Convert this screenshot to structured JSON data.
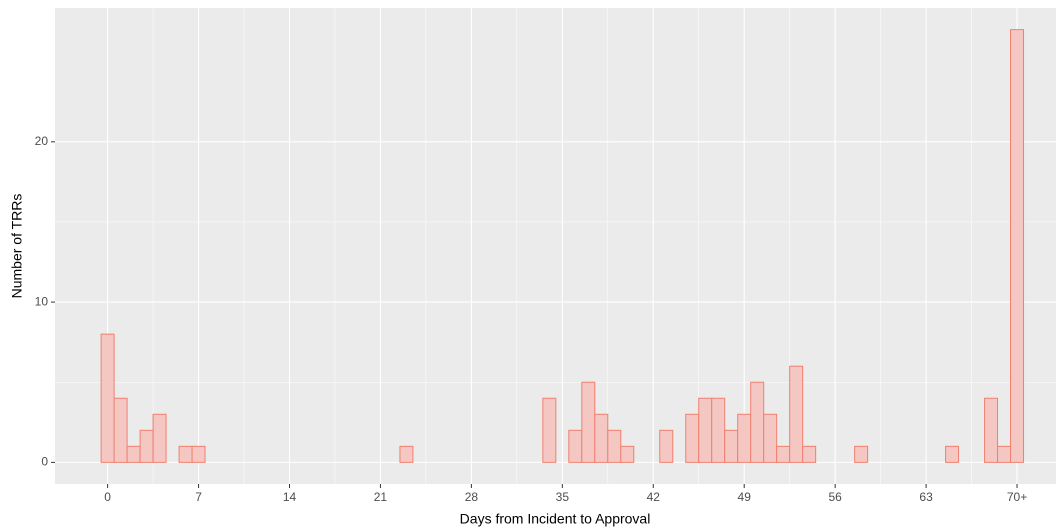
{
  "chart_data": {
    "type": "histogram",
    "x_label": "Days from Incident to Approval",
    "y_label": "Number of TRRs",
    "bins": [
      -0.5,
      0.5,
      1.5,
      2.5,
      3.5,
      4.5,
      5.5,
      6.5,
      7.5,
      8.5,
      9.5,
      10.5,
      11.5,
      12.5,
      13.5,
      14.5,
      15.5,
      16.5,
      17.5,
      18.5,
      19.5,
      20.5,
      21.5,
      22.5,
      23.5,
      24.5,
      25.5,
      26.5,
      27.5,
      28.5,
      29.5,
      30.5,
      31.5,
      32.5,
      33.5,
      34.5,
      35.5,
      36.5,
      37.5,
      38.5,
      39.5,
      40.5,
      41.5,
      42.5,
      43.5,
      44.5,
      45.5,
      46.5,
      47.5,
      48.5,
      49.5,
      50.5,
      51.5,
      52.5,
      53.5,
      54.5,
      55.5,
      56.5,
      57.5,
      58.5,
      59.5,
      60.5,
      61.5,
      62.5,
      63.5,
      64.5,
      65.5,
      66.5,
      67.5,
      68.5,
      69.5,
      70.5
    ],
    "values": [
      8,
      4,
      1,
      2,
      3,
      0,
      1,
      1,
      0,
      0,
      0,
      0,
      0,
      0,
      0,
      0,
      0,
      0,
      0,
      0,
      0,
      0,
      0,
      1,
      0,
      0,
      0,
      0,
      0,
      0,
      0,
      0,
      0,
      0,
      4,
      0,
      2,
      5,
      3,
      2,
      1,
      0,
      0,
      2,
      0,
      3,
      4,
      4,
      2,
      3,
      5,
      3,
      1,
      6,
      1,
      0,
      0,
      0,
      1,
      0,
      0,
      0,
      0,
      0,
      0,
      1,
      0,
      0,
      4,
      1,
      27
    ],
    "fill": "#f4c7c3",
    "color": "#f08070",
    "xlim": [
      -4.05,
      73
    ],
    "ylim": [
      -1.35,
      28.35
    ],
    "xticks": [
      0,
      7,
      14,
      21,
      28,
      35,
      42,
      49,
      56,
      63,
      {
        "value": 70,
        "label": "70+"
      }
    ],
    "yticks": [
      0,
      10,
      20
    ],
    "grid": true
  }
}
